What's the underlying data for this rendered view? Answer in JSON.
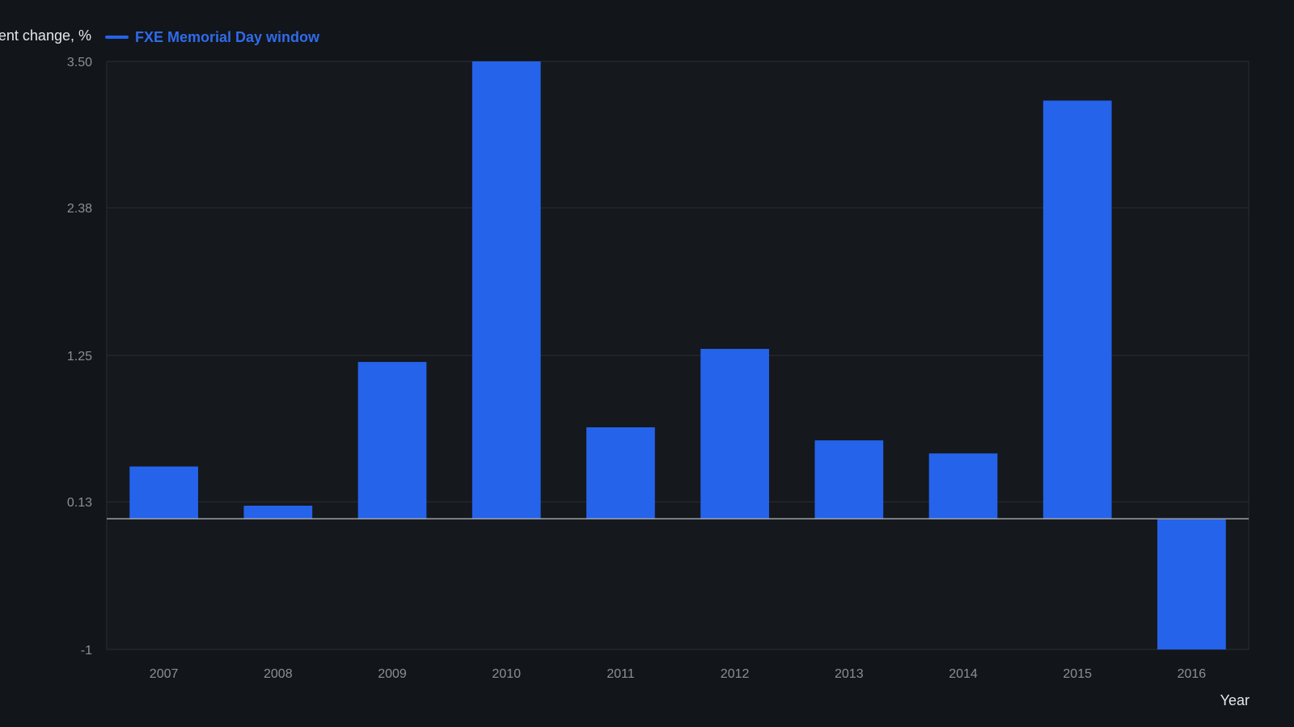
{
  "colors": {
    "background": "#12151a",
    "plot_background": "#15181d",
    "bar": "#2563eb",
    "grid": "#2a2e35",
    "zero_line": "#9aa0a6",
    "tick_text": "#8b9097",
    "label_text": "#e6e8eb"
  },
  "legend": {
    "icon": "line-swatch",
    "placement": "top-left"
  },
  "chart_data": {
    "type": "bar",
    "title": "",
    "ylabel": "Percent change, %",
    "xlabel": "Year",
    "categories": [
      "2007",
      "2008",
      "2009",
      "2010",
      "2011",
      "2012",
      "2013",
      "2014",
      "2015",
      "2016"
    ],
    "series": [
      {
        "name": "FXE Memorial Day window",
        "values": [
          0.4,
          0.1,
          1.2,
          3.5,
          0.7,
          1.3,
          0.6,
          0.5,
          3.2,
          -1.0
        ]
      }
    ],
    "yticks": [
      "3.50",
      "2.38",
      "1.25",
      "0.13",
      "-1"
    ],
    "ylim": [
      -1,
      3.5
    ],
    "grid": true
  }
}
